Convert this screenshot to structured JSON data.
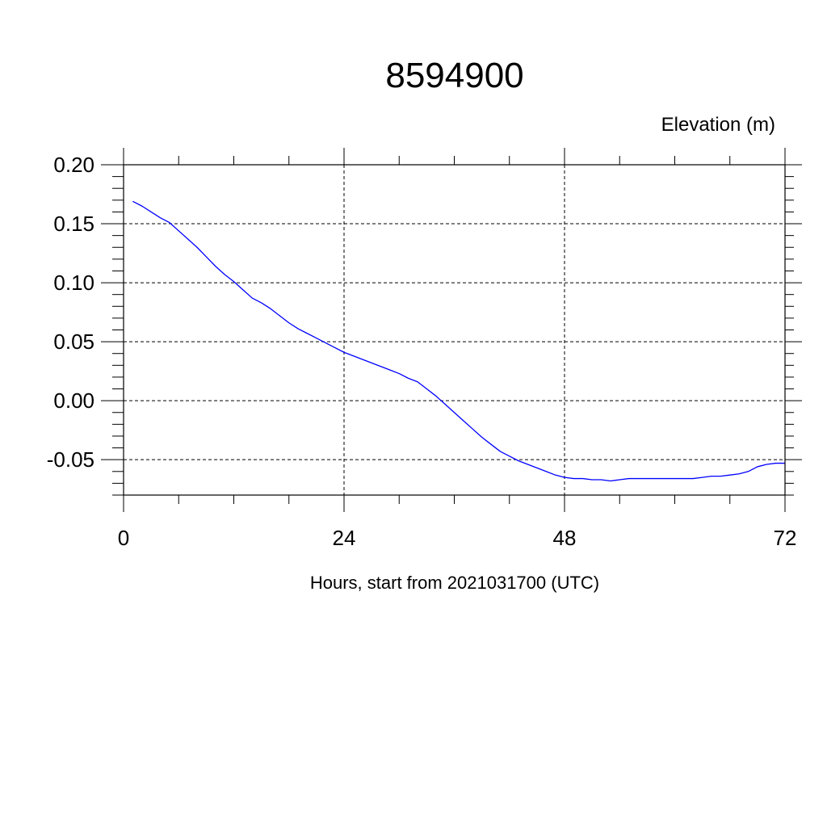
{
  "chart_data": {
    "type": "line",
    "title": "8594900",
    "ylabel": "Elevation (m)",
    "xlabel": "Hours, start from 2021031700 (UTC)",
    "xlim": [
      0,
      72
    ],
    "ylim": [
      -0.08,
      0.2
    ],
    "x_ticks": [
      0,
      24,
      48,
      72
    ],
    "x_tick_labels": [
      "0",
      "24",
      "48",
      "72"
    ],
    "y_ticks": [
      0.2,
      0.15,
      0.1,
      0.05,
      0.0,
      -0.05
    ],
    "y_tick_labels": [
      "0.20",
      "0.15",
      "0.10",
      "0.05",
      "0.00",
      "-0.05"
    ],
    "grid": true,
    "series": [
      {
        "color": "#0000ff",
        "x": [
          1,
          2,
          3,
          4,
          5,
          6,
          7,
          8,
          9,
          10,
          11,
          12,
          13,
          14,
          15,
          16,
          17,
          18,
          19,
          20,
          21,
          22,
          23,
          24,
          25,
          26,
          27,
          28,
          29,
          30,
          31,
          32,
          33,
          34,
          35,
          36,
          37,
          38,
          39,
          40,
          41,
          42,
          43,
          44,
          45,
          46,
          47,
          48,
          49,
          50,
          51,
          52,
          53,
          54,
          55,
          56,
          57,
          58,
          59,
          60,
          61,
          62,
          63,
          64,
          65,
          66,
          67,
          68,
          69,
          70,
          71,
          72
        ],
        "y": [
          0.169,
          0.165,
          0.16,
          0.155,
          0.151,
          0.144,
          0.137,
          0.13,
          0.122,
          0.114,
          0.107,
          0.101,
          0.094,
          0.087,
          0.083,
          0.078,
          0.072,
          0.066,
          0.061,
          0.057,
          0.053,
          0.049,
          0.045,
          0.041,
          0.038,
          0.035,
          0.032,
          0.029,
          0.026,
          0.023,
          0.019,
          0.016,
          0.01,
          0.004,
          -0.003,
          -0.01,
          -0.017,
          -0.024,
          -0.031,
          -0.037,
          -0.043,
          -0.047,
          -0.051,
          -0.054,
          -0.057,
          -0.06,
          -0.063,
          -0.065,
          -0.066,
          -0.066,
          -0.067,
          -0.067,
          -0.068,
          -0.067,
          -0.066,
          -0.066,
          -0.066,
          -0.066,
          -0.066,
          -0.066,
          -0.066,
          -0.066,
          -0.065,
          -0.064,
          -0.064,
          -0.063,
          -0.062,
          -0.06,
          -0.056,
          -0.054,
          -0.053,
          -0.053
        ]
      }
    ]
  }
}
